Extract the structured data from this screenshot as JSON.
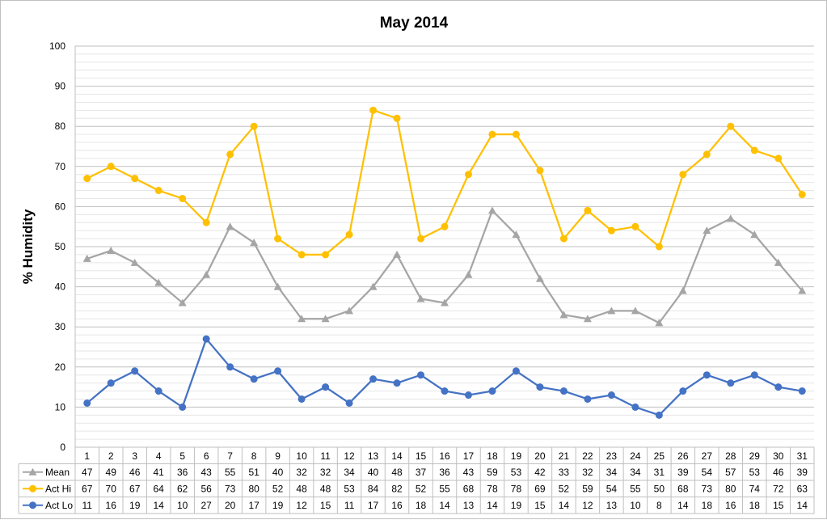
{
  "chart_data": {
    "type": "line",
    "title": "May 2014",
    "ylabel": "% Humidity",
    "xlabel": "",
    "ylim": [
      0,
      100
    ],
    "y_major_step": 10,
    "y_minor_step": 2,
    "grid": true,
    "legend": "data-table",
    "categories": [
      "1",
      "2",
      "3",
      "4",
      "5",
      "6",
      "7",
      "8",
      "9",
      "10",
      "11",
      "12",
      "13",
      "14",
      "15",
      "16",
      "17",
      "18",
      "19",
      "20",
      "21",
      "22",
      "23",
      "24",
      "25",
      "26",
      "27",
      "28",
      "29",
      "30",
      "31"
    ],
    "series": [
      {
        "name": "Mean",
        "color": "#a5a5a5",
        "marker": "triangle",
        "values": [
          47,
          49,
          46,
          41,
          36,
          43,
          55,
          51,
          40,
          32,
          32,
          34,
          40,
          48,
          37,
          36,
          43,
          59,
          53,
          42,
          33,
          32,
          34,
          34,
          31,
          39,
          54,
          57,
          53,
          46,
          39
        ]
      },
      {
        "name": "Act Hi",
        "color": "#ffc000",
        "marker": "circle",
        "values": [
          67,
          70,
          67,
          64,
          62,
          56,
          73,
          80,
          52,
          48,
          48,
          53,
          84,
          82,
          52,
          55,
          68,
          78,
          78,
          69,
          52,
          59,
          54,
          55,
          50,
          68,
          73,
          80,
          74,
          72,
          63
        ]
      },
      {
        "name": "Act Lo",
        "color": "#4472c4",
        "marker": "circle",
        "values": [
          11,
          16,
          19,
          14,
          10,
          27,
          20,
          17,
          19,
          12,
          15,
          11,
          17,
          16,
          18,
          14,
          13,
          14,
          19,
          15,
          14,
          12,
          13,
          10,
          8,
          14,
          18,
          16,
          18,
          15,
          14
        ]
      }
    ]
  }
}
